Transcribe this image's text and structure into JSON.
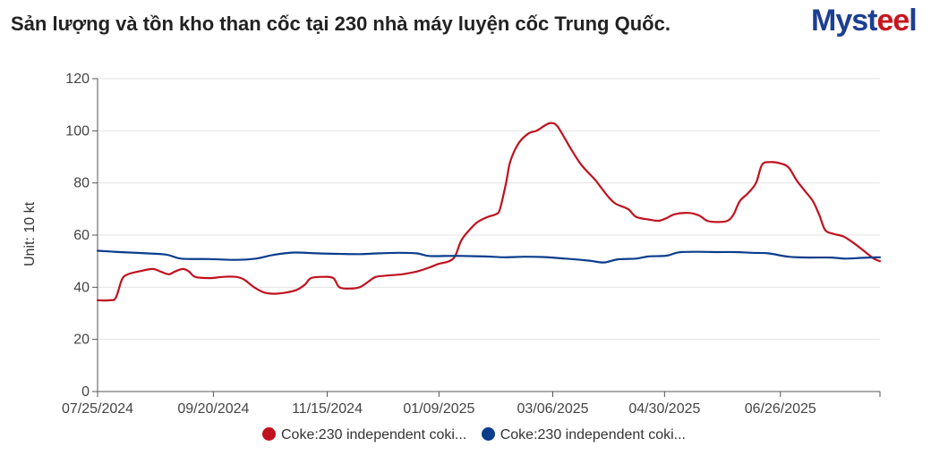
{
  "title": "Sản lượng và tồn kho than cốc tại 230 nhà máy luyện cốc Trung Quốc.",
  "logo": {
    "text_main": "Myst",
    "text_accent": "ee",
    "text_end": "l"
  },
  "chart_data": {
    "type": "line",
    "ylabel": "Unit: 10 kt",
    "xlabel": "",
    "ylim": [
      0,
      120
    ],
    "yticks": [
      0,
      20,
      40,
      60,
      80,
      100,
      120
    ],
    "x_range": [
      "2024-07-25",
      "2025-08-14"
    ],
    "xticks": [
      "07/25/2024",
      "09/20/2024",
      "11/15/2024",
      "01/09/2025",
      "03/06/2025",
      "04/30/2025",
      "06/26/2025"
    ],
    "grid": "horizontal",
    "legend_position": "bottom",
    "series": [
      {
        "name": "Coke:230 independent coki...",
        "color": "#c0111f",
        "points": [
          [
            "2024-07-25",
            35
          ],
          [
            "2024-07-31",
            35
          ],
          [
            "2024-08-03",
            36
          ],
          [
            "2024-08-06",
            43
          ],
          [
            "2024-08-09",
            45
          ],
          [
            "2024-08-14",
            46
          ],
          [
            "2024-08-21",
            47
          ],
          [
            "2024-08-25",
            46
          ],
          [
            "2024-08-29",
            45
          ],
          [
            "2024-09-01",
            46
          ],
          [
            "2024-09-05",
            47
          ],
          [
            "2024-09-08",
            46
          ],
          [
            "2024-09-11",
            44
          ],
          [
            "2024-09-18",
            43.5
          ],
          [
            "2024-09-25",
            44
          ],
          [
            "2024-10-01",
            44
          ],
          [
            "2024-10-05",
            43
          ],
          [
            "2024-10-10",
            40
          ],
          [
            "2024-10-15",
            38
          ],
          [
            "2024-10-20",
            37.5
          ],
          [
            "2024-10-26",
            38
          ],
          [
            "2024-10-31",
            39
          ],
          [
            "2024-11-04",
            41
          ],
          [
            "2024-11-07",
            43.5
          ],
          [
            "2024-11-13",
            44
          ],
          [
            "2024-11-18",
            43.5
          ],
          [
            "2024-11-21",
            40
          ],
          [
            "2024-11-26",
            39.5
          ],
          [
            "2024-12-01",
            40
          ],
          [
            "2024-12-05",
            42
          ],
          [
            "2024-12-09",
            44
          ],
          [
            "2024-12-15",
            44.5
          ],
          [
            "2024-12-22",
            45
          ],
          [
            "2024-12-29",
            46
          ],
          [
            "2025-01-04",
            47.5
          ],
          [
            "2025-01-09",
            49
          ],
          [
            "2025-01-14",
            50
          ],
          [
            "2025-01-17",
            52
          ],
          [
            "2025-01-20",
            58
          ],
          [
            "2025-01-24",
            62
          ],
          [
            "2025-01-28",
            65
          ],
          [
            "2025-02-02",
            67
          ],
          [
            "2025-02-06",
            68
          ],
          [
            "2025-02-08",
            70
          ],
          [
            "2025-02-11",
            80
          ],
          [
            "2025-02-13",
            88
          ],
          [
            "2025-02-17",
            95
          ],
          [
            "2025-02-22",
            99
          ],
          [
            "2025-02-26",
            100
          ],
          [
            "2025-03-02",
            102
          ],
          [
            "2025-03-05",
            103
          ],
          [
            "2025-03-08",
            102
          ],
          [
            "2025-03-12",
            97
          ],
          [
            "2025-03-15",
            93
          ],
          [
            "2025-03-20",
            87
          ],
          [
            "2025-03-27",
            81
          ],
          [
            "2025-04-02",
            75
          ],
          [
            "2025-04-06",
            72
          ],
          [
            "2025-04-12",
            70
          ],
          [
            "2025-04-16",
            67
          ],
          [
            "2025-04-22",
            66
          ],
          [
            "2025-04-27",
            65.5
          ],
          [
            "2025-05-01",
            66.5
          ],
          [
            "2025-05-05",
            68
          ],
          [
            "2025-05-12",
            68.5
          ],
          [
            "2025-05-17",
            67.5
          ],
          [
            "2025-05-21",
            65.5
          ],
          [
            "2025-05-26",
            65
          ],
          [
            "2025-05-31",
            65.5
          ],
          [
            "2025-06-03",
            68
          ],
          [
            "2025-06-06",
            73
          ],
          [
            "2025-06-10",
            76
          ],
          [
            "2025-06-14",
            80
          ],
          [
            "2025-06-17",
            87
          ],
          [
            "2025-06-21",
            88
          ],
          [
            "2025-06-26",
            87.5
          ],
          [
            "2025-06-30",
            86
          ],
          [
            "2025-07-04",
            81
          ],
          [
            "2025-07-08",
            77
          ],
          [
            "2025-07-12",
            73
          ],
          [
            "2025-07-15",
            68
          ],
          [
            "2025-07-18",
            62
          ],
          [
            "2025-07-22",
            60.5
          ],
          [
            "2025-07-27",
            59.5
          ],
          [
            "2025-08-01",
            57
          ],
          [
            "2025-08-06",
            54
          ],
          [
            "2025-08-11",
            51
          ],
          [
            "2025-08-14",
            50
          ]
        ]
      },
      {
        "name": "Coke:230 independent coki...",
        "color": "#0b3d8c",
        "points": [
          [
            "2024-07-25",
            54
          ],
          [
            "2024-08-05",
            53.5
          ],
          [
            "2024-08-18",
            53
          ],
          [
            "2024-08-28",
            52.5
          ],
          [
            "2024-09-04",
            51
          ],
          [
            "2024-09-18",
            50.8
          ],
          [
            "2024-10-01",
            50.5
          ],
          [
            "2024-10-11",
            51
          ],
          [
            "2024-10-20",
            52.5
          ],
          [
            "2024-10-30",
            53.3
          ],
          [
            "2024-11-10",
            53
          ],
          [
            "2024-11-20",
            52.8
          ],
          [
            "2024-12-01",
            52.7
          ],
          [
            "2024-12-10",
            53
          ],
          [
            "2024-12-20",
            53.2
          ],
          [
            "2024-12-29",
            53
          ],
          [
            "2025-01-04",
            52
          ],
          [
            "2025-01-14",
            52
          ],
          [
            "2025-01-20",
            52
          ],
          [
            "2025-02-01",
            51.8
          ],
          [
            "2025-02-10",
            51.5
          ],
          [
            "2025-02-20",
            51.7
          ],
          [
            "2025-03-01",
            51.6
          ],
          [
            "2025-03-12",
            51
          ],
          [
            "2025-03-24",
            50.2
          ],
          [
            "2025-03-31",
            49.5
          ],
          [
            "2025-04-07",
            50.7
          ],
          [
            "2025-04-16",
            51
          ],
          [
            "2025-04-22",
            51.8
          ],
          [
            "2025-05-01",
            52.1
          ],
          [
            "2025-05-07",
            53.4
          ],
          [
            "2025-05-16",
            53.6
          ],
          [
            "2025-05-26",
            53.5
          ],
          [
            "2025-06-04",
            53.5
          ],
          [
            "2025-06-12",
            53.2
          ],
          [
            "2025-06-20",
            53
          ],
          [
            "2025-06-30",
            51.7
          ],
          [
            "2025-07-10",
            51.4
          ],
          [
            "2025-07-21",
            51.4
          ],
          [
            "2025-07-28",
            51
          ],
          [
            "2025-08-06",
            51.3
          ],
          [
            "2025-08-14",
            51.5
          ]
        ]
      }
    ]
  }
}
